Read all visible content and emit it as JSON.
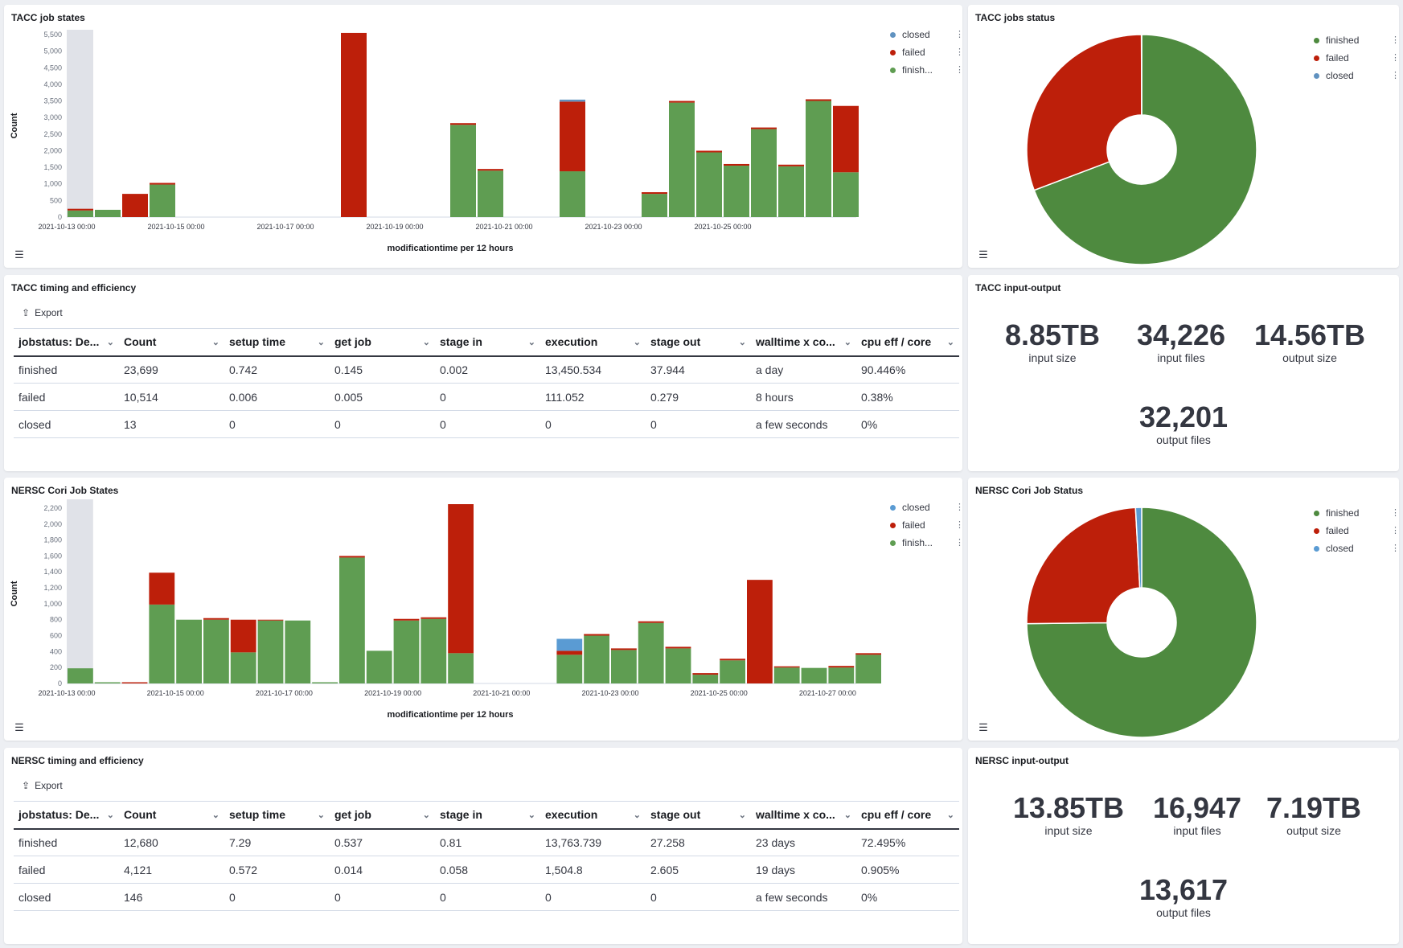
{
  "colors": {
    "finished": "#5f9d52",
    "failed": "#bd1f0a",
    "closed": "#6092c0",
    "closed_nersc": "#5a9bd3",
    "pie_finished": "#4e8a3f"
  },
  "tacc_states": {
    "title": "TACC job states",
    "ylabel": "Count",
    "xlabel": "modificationtime per 12 hours",
    "legend": [
      {
        "label": "closed",
        "color": "#6092c0",
        "icon": "kebab-icon"
      },
      {
        "label": "failed",
        "color": "#bd1f0a",
        "icon": "kebab-icon"
      },
      {
        "label": "finish...",
        "color": "#5f9d52",
        "icon": "kebab-icon"
      }
    ]
  },
  "tacc_pie": {
    "title": "TACC jobs status",
    "legend": [
      {
        "label": "finished",
        "color": "#4e8a3f"
      },
      {
        "label": "failed",
        "color": "#bd1f0a"
      },
      {
        "label": "closed",
        "color": "#6092c0"
      }
    ]
  },
  "tacc_table": {
    "title": "TACC timing and efficiency",
    "export_label": "Export",
    "headers": [
      "jobstatus: De...",
      "Count",
      "setup time",
      "get job",
      "stage in",
      "execution",
      "stage out",
      "walltime x co...",
      "cpu eff / core"
    ],
    "rows": [
      [
        "finished",
        "23,699",
        "0.742",
        "0.145",
        "0.002",
        "13,450.534",
        "37.944",
        "a day",
        "90.446%"
      ],
      [
        "failed",
        "10,514",
        "0.006",
        "0.005",
        "0",
        "111.052",
        "0.279",
        "8 hours",
        "0.38%"
      ],
      [
        "closed",
        "13",
        "0",
        "0",
        "0",
        "0",
        "0",
        "a few seconds",
        "0%"
      ]
    ]
  },
  "tacc_io": {
    "title": "TACC input-output",
    "metrics": [
      {
        "value": "8.85TB",
        "label": "input size"
      },
      {
        "value": "34,226",
        "label": "input files"
      },
      {
        "value": "14.56TB",
        "label": "output size"
      },
      {
        "value": "32,201",
        "label": "output files"
      }
    ]
  },
  "nersc_states": {
    "title": "NERSC Cori Job States",
    "ylabel": "Count",
    "xlabel": "modificationtime per 12 hours",
    "legend": [
      {
        "label": "closed",
        "color": "#5a9bd3"
      },
      {
        "label": "failed",
        "color": "#bd1f0a"
      },
      {
        "label": "finish...",
        "color": "#5f9d52"
      }
    ]
  },
  "nersc_pie": {
    "title": "NERSC Cori Job Status",
    "legend": [
      {
        "label": "finished",
        "color": "#4e8a3f"
      },
      {
        "label": "failed",
        "color": "#bd1f0a"
      },
      {
        "label": "closed",
        "color": "#5a9bd3"
      }
    ]
  },
  "nersc_table": {
    "title": "NERSC timing and efficiency",
    "export_label": "Export",
    "headers": [
      "jobstatus: De...",
      "Count",
      "setup time",
      "get job",
      "stage in",
      "execution",
      "stage out",
      "walltime x co...",
      "cpu eff / core"
    ],
    "rows": [
      [
        "finished",
        "12,680",
        "7.29",
        "0.537",
        "0.81",
        "13,763.739",
        "27.258",
        "23 days",
        "72.495%"
      ],
      [
        "failed",
        "4,121",
        "0.572",
        "0.014",
        "0.058",
        "1,504.8",
        "2.605",
        "19 days",
        "0.905%"
      ],
      [
        "closed",
        "146",
        "0",
        "0",
        "0",
        "0",
        "0",
        "a few seconds",
        "0%"
      ]
    ]
  },
  "nersc_io": {
    "title": "NERSC input-output",
    "metrics": [
      {
        "value": "13.85TB",
        "label": "input size"
      },
      {
        "value": "16,947",
        "label": "input files"
      },
      {
        "value": "7.19TB",
        "label": "output size"
      },
      {
        "value": "13,617",
        "label": "output files"
      }
    ]
  },
  "chart_data": [
    {
      "id": "tacc_states",
      "type": "bar",
      "stacked": true,
      "title": "TACC job states",
      "ylabel": "Count",
      "xlabel": "modificationtime per 12 hours",
      "ylim": [
        0,
        5500
      ],
      "yticks": [
        0,
        500,
        1000,
        1500,
        2000,
        2500,
        3000,
        3500,
        4000,
        4500,
        5000,
        5500
      ],
      "xticks": [
        "2021-10-13 00:00",
        "2021-10-15 00:00",
        "2021-10-17 00:00",
        "2021-10-19 00:00",
        "2021-10-21 00:00",
        "2021-10-23 00:00",
        "2021-10-25 00:00"
      ],
      "x_start": "2021-10-13 00:00",
      "bin_hours": 12,
      "series": [
        {
          "name": "finished",
          "values": [
            200,
            220,
            0,
            980,
            0,
            0,
            0,
            0,
            0,
            0,
            0,
            0,
            0,
            0,
            2780,
            1400,
            0,
            0,
            1380,
            0,
            0,
            700,
            3450,
            1950,
            1550,
            2650,
            1530,
            3500,
            1350
          ]
        },
        {
          "name": "failed",
          "values": [
            50,
            0,
            700,
            50,
            0,
            0,
            0,
            0,
            0,
            0,
            5550,
            0,
            0,
            0,
            50,
            50,
            0,
            0,
            2100,
            0,
            0,
            50,
            50,
            50,
            50,
            50,
            50,
            50,
            2000
          ]
        },
        {
          "name": "closed",
          "values": [
            0,
            0,
            0,
            0,
            0,
            0,
            0,
            0,
            0,
            0,
            0,
            0,
            0,
            0,
            0,
            0,
            0,
            0,
            60,
            0,
            0,
            0,
            0,
            0,
            0,
            0,
            0,
            0,
            0
          ]
        }
      ]
    },
    {
      "id": "tacc_pie",
      "type": "pie",
      "title": "TACC jobs status",
      "donut": true,
      "labels": [
        "finished",
        "failed",
        "closed"
      ],
      "values": [
        23699,
        10514,
        13
      ]
    },
    {
      "id": "nersc_states",
      "type": "bar",
      "stacked": true,
      "title": "NERSC Cori Job States",
      "ylabel": "Count",
      "xlabel": "modificationtime per 12 hours",
      "ylim": [
        0,
        2250
      ],
      "yticks": [
        0,
        200,
        400,
        600,
        800,
        1000,
        1200,
        1400,
        1600,
        1800,
        2000,
        2200
      ],
      "xticks": [
        "2021-10-13 00:00",
        "2021-10-15 00:00",
        "2021-10-17 00:00",
        "2021-10-19 00:00",
        "2021-10-21 00:00",
        "2021-10-23 00:00",
        "2021-10-25 00:00",
        "2021-10-27 00:00"
      ],
      "x_start": "2021-10-13 00:00",
      "bin_hours": 12,
      "series": [
        {
          "name": "finished",
          "values": [
            190,
            15,
            0,
            990,
            800,
            800,
            390,
            790,
            790,
            15,
            1580,
            410,
            790,
            810,
            380,
            0,
            0,
            0,
            360,
            600,
            420,
            760,
            440,
            110,
            290,
            0,
            200,
            195,
            200,
            360
          ]
        },
        {
          "name": "failed",
          "values": [
            0,
            0,
            15,
            400,
            0,
            20,
            410,
            10,
            0,
            0,
            20,
            0,
            20,
            20,
            1870,
            0,
            0,
            0,
            50,
            20,
            20,
            20,
            20,
            20,
            20,
            1300,
            15,
            0,
            20,
            20
          ]
        },
        {
          "name": "closed",
          "values": [
            0,
            0,
            0,
            0,
            0,
            0,
            0,
            0,
            0,
            0,
            0,
            0,
            0,
            0,
            0,
            0,
            0,
            0,
            150,
            0,
            0,
            0,
            0,
            0,
            0,
            0,
            0,
            0,
            0,
            0
          ]
        }
      ]
    },
    {
      "id": "nersc_pie",
      "type": "pie",
      "title": "NERSC Cori Job Status",
      "donut": true,
      "labels": [
        "finished",
        "failed",
        "closed"
      ],
      "values": [
        12680,
        4121,
        146
      ]
    }
  ]
}
